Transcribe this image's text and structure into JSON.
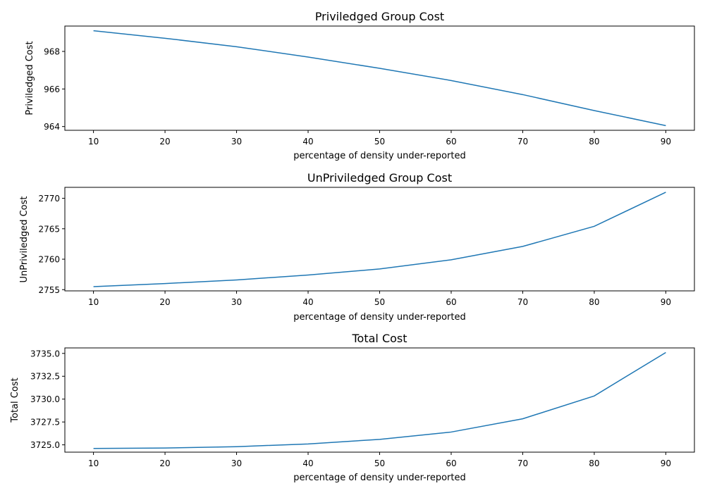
{
  "style": {
    "line_color": "#1f77b4"
  },
  "chart_data": [
    {
      "type": "line",
      "title": "Priviledged Group Cost",
      "xlabel": "percentage of density under-reported",
      "ylabel": "Priviledged Cost",
      "x": [
        10,
        20,
        30,
        40,
        50,
        60,
        70,
        80,
        90
      ],
      "series": [
        {
          "values": [
            969.1,
            968.7,
            968.25,
            967.7,
            967.1,
            966.45,
            965.7,
            964.85,
            964.05
          ]
        }
      ],
      "xlim": [
        6,
        94
      ],
      "ylim": [
        963.8,
        969.35
      ],
      "xticks": [
        10,
        20,
        30,
        40,
        50,
        60,
        70,
        80,
        90
      ],
      "xtick_labels": [
        "10",
        "20",
        "30",
        "40",
        "50",
        "60",
        "70",
        "80",
        "90"
      ],
      "yticks": [
        964,
        966,
        968
      ],
      "ytick_labels": [
        "964",
        "966",
        "968"
      ],
      "grid": false,
      "legend": "none"
    },
    {
      "type": "line",
      "title": "UnPriviledged Group Cost",
      "xlabel": "percentage of density under-reported",
      "ylabel": "UnPriviledged Cost",
      "x": [
        10,
        20,
        30,
        40,
        50,
        60,
        70,
        80,
        90
      ],
      "series": [
        {
          "values": [
            2755.5,
            2756.0,
            2756.6,
            2757.4,
            2758.4,
            2759.9,
            2762.1,
            2765.4,
            2771.0
          ]
        }
      ],
      "xlim": [
        6,
        94
      ],
      "ylim": [
        2754.8,
        2771.8
      ],
      "xticks": [
        10,
        20,
        30,
        40,
        50,
        60,
        70,
        80,
        90
      ],
      "xtick_labels": [
        "10",
        "20",
        "30",
        "40",
        "50",
        "60",
        "70",
        "80",
        "90"
      ],
      "yticks": [
        2755,
        2760,
        2765,
        2770
      ],
      "ytick_labels": [
        "2755",
        "2760",
        "2765",
        "2770"
      ],
      "grid": false,
      "legend": "none"
    },
    {
      "type": "line",
      "title": "Total Cost",
      "xlabel": "percentage of density under-reported",
      "ylabel": "Total Cost",
      "x": [
        10,
        20,
        30,
        40,
        50,
        60,
        70,
        80,
        90
      ],
      "series": [
        {
          "values": [
            3724.6,
            3724.65,
            3724.8,
            3725.1,
            3725.6,
            3726.4,
            3727.85,
            3730.35,
            3735.1
          ]
        }
      ],
      "xlim": [
        6,
        94
      ],
      "ylim": [
        3724.2,
        3735.6
      ],
      "xticks": [
        10,
        20,
        30,
        40,
        50,
        60,
        70,
        80,
        90
      ],
      "xtick_labels": [
        "10",
        "20",
        "30",
        "40",
        "50",
        "60",
        "70",
        "80",
        "90"
      ],
      "yticks": [
        3725.0,
        3727.5,
        3730.0,
        3732.5,
        3735.0
      ],
      "ytick_labels": [
        "3725.0",
        "3727.5",
        "3730.0",
        "3732.5",
        "3735.0"
      ],
      "grid": false,
      "legend": "none"
    }
  ]
}
